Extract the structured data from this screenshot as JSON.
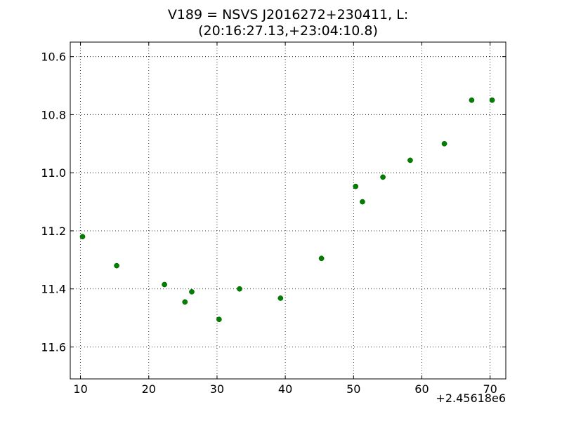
{
  "chart_data": {
    "type": "scatter",
    "title_line1": "V189 = NSVS J2016272+230411, L:",
    "title_line2": "(20:16:27.13,+23:04:10.8)",
    "xlabel": "",
    "ylabel": "",
    "x_offset_label": "+2.45618e6",
    "xlim": [
      8.5,
      72.3
    ],
    "ylim": [
      11.71,
      10.55
    ],
    "y_inverted": true,
    "grid": true,
    "marker_color": "#008000",
    "x_ticks": [
      10,
      20,
      30,
      40,
      50,
      60,
      70
    ],
    "y_ticks": [
      10.6,
      10.8,
      11.0,
      11.2,
      11.4,
      11.6
    ],
    "x": [
      10.3,
      15.3,
      22.3,
      25.3,
      26.3,
      30.3,
      33.3,
      39.3,
      45.3,
      50.3,
      51.3,
      54.3,
      58.3,
      63.3,
      67.3,
      70.3
    ],
    "y": [
      11.22,
      11.32,
      11.385,
      11.445,
      11.41,
      11.505,
      11.4,
      11.432,
      11.295,
      11.047,
      11.1,
      11.015,
      10.957,
      10.9,
      10.75,
      10.75
    ]
  }
}
